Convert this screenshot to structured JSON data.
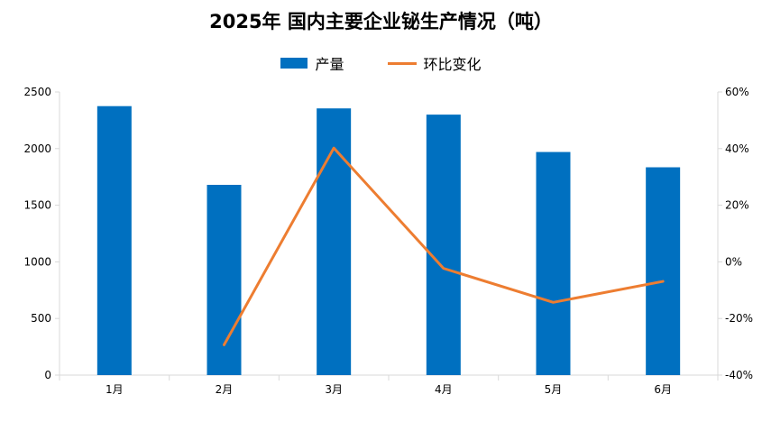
{
  "chart_data": {
    "type": "bar",
    "title": "2025年 国内主要企业铋生产情况（吨）",
    "categories": [
      "1月",
      "2月",
      "3月",
      "4月",
      "5月",
      "6月"
    ],
    "series": [
      {
        "name": "产量",
        "type": "bar",
        "axis": "left",
        "values": [
          2375,
          1680,
          2355,
          2300,
          1970,
          1835
        ],
        "color": "#0070C0"
      },
      {
        "name": "环比变化",
        "type": "line",
        "axis": "right",
        "values": [
          null,
          -29.3,
          40.2,
          -2.3,
          -14.3,
          -6.9
        ],
        "color": "#ED7D31"
      }
    ],
    "y_left": {
      "min": 0,
      "max": 2500,
      "step": 500,
      "tick_labels": [
        "0",
        "500",
        "1000",
        "1500",
        "2000",
        "2500"
      ]
    },
    "y_right": {
      "min": -40,
      "max": 60,
      "step": 20,
      "tick_labels": [
        "-40%",
        "-20%",
        "0%",
        "20%",
        "40%",
        "60%"
      ]
    },
    "legend_position": "top-center",
    "grid": false
  }
}
